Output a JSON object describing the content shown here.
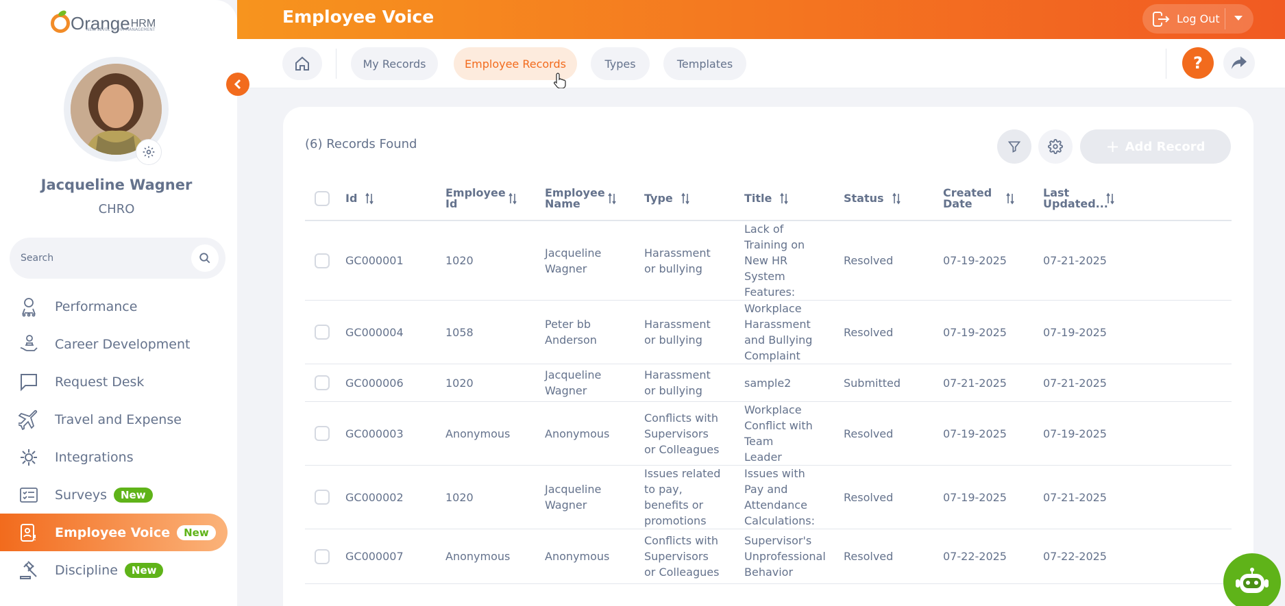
{
  "brand": {
    "name": "Orange",
    "suffix": "HRM",
    "tagline": "NEW LEVEL OF HR MANAGEMENT"
  },
  "user": {
    "name": "Jacqueline Wagner",
    "role": "CHRO"
  },
  "search": {
    "placeholder": "Search"
  },
  "nav": [
    {
      "label": "Performance",
      "icon": "performance-icon",
      "badge": ""
    },
    {
      "label": "Career Development",
      "icon": "career-icon",
      "badge": ""
    },
    {
      "label": "Request Desk",
      "icon": "request-desk-icon",
      "badge": ""
    },
    {
      "label": "Travel and Expense",
      "icon": "airplane-icon",
      "badge": ""
    },
    {
      "label": "Integrations",
      "icon": "integrations-icon",
      "badge": ""
    },
    {
      "label": "Surveys",
      "icon": "surveys-icon",
      "badge": "New"
    },
    {
      "label": "Employee Voice",
      "icon": "employee-voice-icon",
      "badge": "New",
      "active": true
    },
    {
      "label": "Discipline",
      "icon": "gavel-icon",
      "badge": "New"
    }
  ],
  "header": {
    "title": "Employee Voice",
    "logout_label": "Log Out"
  },
  "tabs": [
    {
      "label": "My Records"
    },
    {
      "label": "Employee Records",
      "active": true
    },
    {
      "label": "Types"
    },
    {
      "label": "Templates"
    }
  ],
  "help_label": "?",
  "records": {
    "count_label": "(6) Records Found",
    "add_label": "Add Record",
    "columns": [
      "Id",
      "Employee Id",
      "Employee Name",
      "Type",
      "Title",
      "Status",
      "Created Date",
      "Last Updated..."
    ],
    "rows": [
      {
        "id": "GC000001",
        "employee_id": "1020",
        "employee_name": "Jacqueline Wagner",
        "type": "Harassment or bullying",
        "title": "Lack of Training on New HR System Features:",
        "status": "Resolved",
        "created": "07-19-2025",
        "updated": "07-21-2025"
      },
      {
        "id": "GC000004",
        "employee_id": "1058",
        "employee_name": "Peter bb Anderson",
        "type": "Harassment or bullying",
        "title": "Workplace Harassment and Bullying Complaint",
        "status": "Resolved",
        "created": "07-19-2025",
        "updated": "07-19-2025"
      },
      {
        "id": "GC000006",
        "employee_id": "1020",
        "employee_name": "Jacqueline Wagner",
        "type": "Harassment or bullying",
        "title": "sample2",
        "status": "Submitted",
        "created": "07-21-2025",
        "updated": "07-21-2025"
      },
      {
        "id": "GC000003",
        "employee_id": "Anonymous",
        "employee_name": "Anonymous",
        "type": "Conflicts with Supervisors or Colleagues",
        "title": "Workplace Conflict with Team Leader",
        "status": "Resolved",
        "created": "07-19-2025",
        "updated": "07-19-2025"
      },
      {
        "id": "GC000002",
        "employee_id": "1020",
        "employee_name": "Jacqueline Wagner",
        "type": "Issues related to pay, benefits or promotions",
        "title": "Issues with Pay and Attendance Calculations:",
        "status": "Resolved",
        "created": "07-19-2025",
        "updated": "07-21-2025"
      },
      {
        "id": "GC000007",
        "employee_id": "Anonymous",
        "employee_name": "Anonymous",
        "type": "Conflicts with Supervisors or Colleagues",
        "title": "Supervisor's Unprofessional Behavior",
        "status": "Resolved",
        "created": "07-22-2025",
        "updated": "07-22-2025"
      }
    ]
  },
  "colors": {
    "accent": "#f26b1d",
    "badge_green": "#5fb319",
    "text": "#64728c"
  }
}
